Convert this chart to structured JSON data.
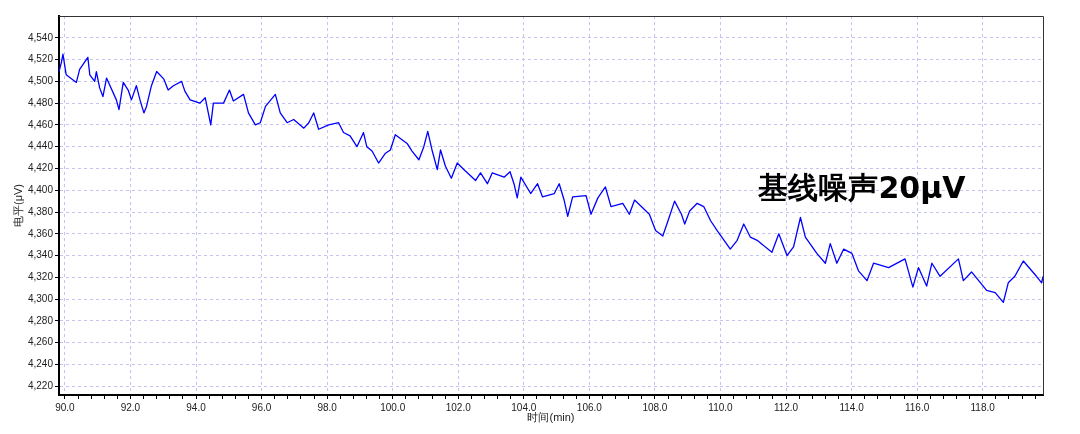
{
  "chart_data": {
    "type": "line",
    "xlabel": "时间(min)",
    "ylabel": "电平(μV)",
    "annotations": [
      "基线噪声20μV"
    ],
    "color": "#0000ff",
    "marker": "none",
    "grid": true,
    "x": [
      89.82,
      89.89,
      89.94,
      90.04,
      90.35,
      90.45,
      90.7,
      90.76,
      90.91,
      90.96,
      91.06,
      91.16,
      91.27,
      91.57,
      91.65,
      91.78,
      91.93,
      92.03,
      92.18,
      92.29,
      92.41,
      92.49,
      92.64,
      92.8,
      93.02,
      93.15,
      93.31,
      93.56,
      93.66,
      93.82,
      94.12,
      94.28,
      94.45,
      94.53,
      94.84,
      95.02,
      95.14,
      95.45,
      95.6,
      95.81,
      95.96,
      96.12,
      96.42,
      96.57,
      96.78,
      96.98,
      97.29,
      97.44,
      97.59,
      97.74,
      98.05,
      98.35,
      98.5,
      98.7,
      98.91,
      99.11,
      99.21,
      99.37,
      99.57,
      99.78,
      99.93,
      100.08,
      100.44,
      100.59,
      100.8,
      100.95,
      101.07,
      101.2,
      101.36,
      101.46,
      101.61,
      101.79,
      101.97,
      102.17,
      102.53,
      102.68,
      102.89,
      103.04,
      103.4,
      103.58,
      103.7,
      103.8,
      103.91,
      104.21,
      104.42,
      104.57,
      104.93,
      105.08,
      105.23,
      105.34,
      105.49,
      105.9,
      106.05,
      106.26,
      106.49,
      106.66,
      107.02,
      107.22,
      107.38,
      107.83,
      108.02,
      108.24,
      108.4,
      108.6,
      108.81,
      108.91,
      109.06,
      109.29,
      109.49,
      109.7,
      109.9,
      110.3,
      110.51,
      110.71,
      110.91,
      111.12,
      111.57,
      111.78,
      112.03,
      112.23,
      112.44,
      112.59,
      112.94,
      113.2,
      113.35,
      113.55,
      113.76,
      114.01,
      114.21,
      114.47,
      114.67,
      115.13,
      115.63,
      115.87,
      116.04,
      116.29,
      116.45,
      116.7,
      117.26,
      117.41,
      117.66,
      118.12,
      118.38,
      118.63,
      118.78,
      118.98,
      119.24,
      119.64,
      119.8,
      119.84
    ],
    "values": [
      4509,
      4517,
      4525,
      4506,
      4499,
      4511,
      4522,
      4506,
      4500,
      4509,
      4494,
      4486,
      4503,
      4483,
      4474,
      4499,
      4492,
      4483,
      4496,
      4483,
      4471,
      4477,
      4496,
      4509,
      4502,
      4492,
      4496,
      4500,
      4491,
      4483,
      4480,
      4485,
      4460,
      4480,
      4480,
      4492,
      4482,
      4488,
      4471,
      4460,
      4462,
      4477,
      4488,
      4471,
      4462,
      4465,
      4457,
      4462,
      4471,
      4456,
      4460,
      4462,
      4453,
      4450,
      4440,
      4453,
      4440,
      4436,
      4425,
      4434,
      4437,
      4451,
      4443,
      4436,
      4428,
      4440,
      4454,
      4437,
      4419,
      4437,
      4422,
      4411,
      4425,
      4419,
      4409,
      4416,
      4406,
      4416,
      4412,
      4417,
      4406,
      4393,
      4412,
      4397,
      4406,
      4394,
      4397,
      4406,
      4391,
      4376,
      4394,
      4395,
      4378,
      4393,
      4403,
      4385,
      4388,
      4378,
      4391,
      4378,
      4363,
      4358,
      4372,
      4390,
      4378,
      4369,
      4381,
      4388,
      4385,
      4372,
      4363,
      4346,
      4354,
      4369,
      4357,
      4354,
      4343,
      4360,
      4340,
      4348,
      4375,
      4357,
      4342,
      4333,
      4351,
      4333,
      4346,
      4342,
      4326,
      4317,
      4333,
      4329,
      4337,
      4311,
      4329,
      4312,
      4333,
      4321,
      4337,
      4317,
      4325,
      4308,
      4306,
      4297,
      4315,
      4321,
      4335,
      4321,
      4315,
      4321
    ],
    "xlim": [
      89.82,
      119.84
    ],
    "ylim": [
      4212,
      4560
    ],
    "xticks": [
      {
        "value": 90,
        "label": "90.0"
      },
      {
        "value": 90.4,
        "label": null
      },
      {
        "value": 90.8,
        "label": null
      },
      {
        "value": 91.2,
        "label": null
      },
      {
        "value": 91.6,
        "label": null
      },
      {
        "value": 92,
        "label": "92.0"
      },
      {
        "value": 92.4,
        "label": null
      },
      {
        "value": 92.8,
        "label": null
      },
      {
        "value": 93.2,
        "label": null
      },
      {
        "value": 93.6,
        "label": null
      },
      {
        "value": 94,
        "label": "94.0"
      },
      {
        "value": 94.4,
        "label": null
      },
      {
        "value": 94.8,
        "label": null
      },
      {
        "value": 95.2,
        "label": null
      },
      {
        "value": 95.6,
        "label": null
      },
      {
        "value": 96,
        "label": "96.0"
      },
      {
        "value": 96.4,
        "label": null
      },
      {
        "value": 96.8,
        "label": null
      },
      {
        "value": 97.2,
        "label": null
      },
      {
        "value": 97.6,
        "label": null
      },
      {
        "value": 98,
        "label": "98.0"
      },
      {
        "value": 98.4,
        "label": null
      },
      {
        "value": 98.8,
        "label": null
      },
      {
        "value": 99.2,
        "label": null
      },
      {
        "value": 99.6,
        "label": null
      },
      {
        "value": 100,
        "label": "100.0"
      },
      {
        "value": 100.4,
        "label": null
      },
      {
        "value": 100.8,
        "label": null
      },
      {
        "value": 101.2,
        "label": null
      },
      {
        "value": 101.6,
        "label": null
      },
      {
        "value": 102,
        "label": "102.0"
      },
      {
        "value": 102.4,
        "label": null
      },
      {
        "value": 102.8,
        "label": null
      },
      {
        "value": 103.2,
        "label": null
      },
      {
        "value": 103.6,
        "label": null
      },
      {
        "value": 104,
        "label": "104.0"
      },
      {
        "value": 104.4,
        "label": null
      },
      {
        "value": 104.8,
        "label": null
      },
      {
        "value": 105.2,
        "label": null
      },
      {
        "value": 105.6,
        "label": null
      },
      {
        "value": 106,
        "label": "106.0"
      },
      {
        "value": 106.4,
        "label": null
      },
      {
        "value": 106.8,
        "label": null
      },
      {
        "value": 107.2,
        "label": null
      },
      {
        "value": 107.6,
        "label": null
      },
      {
        "value": 108,
        "label": "108.0"
      },
      {
        "value": 108.4,
        "label": null
      },
      {
        "value": 108.8,
        "label": null
      },
      {
        "value": 109.2,
        "label": null
      },
      {
        "value": 109.6,
        "label": null
      },
      {
        "value": 110,
        "label": "110.0"
      },
      {
        "value": 110.4,
        "label": null
      },
      {
        "value": 110.8,
        "label": null
      },
      {
        "value": 111.2,
        "label": null
      },
      {
        "value": 111.6,
        "label": null
      },
      {
        "value": 112,
        "label": "112.0"
      },
      {
        "value": 112.4,
        "label": null
      },
      {
        "value": 112.8,
        "label": null
      },
      {
        "value": 113.2,
        "label": null
      },
      {
        "value": 113.6,
        "label": null
      },
      {
        "value": 114,
        "label": "114.0"
      },
      {
        "value": 114.4,
        "label": null
      },
      {
        "value": 114.8,
        "label": null
      },
      {
        "value": 115.2,
        "label": null
      },
      {
        "value": 115.6,
        "label": null
      },
      {
        "value": 116,
        "label": "116.0"
      },
      {
        "value": 116.4,
        "label": null
      },
      {
        "value": 116.8,
        "label": null
      },
      {
        "value": 117.2,
        "label": null
      },
      {
        "value": 117.6,
        "label": null
      },
      {
        "value": 118,
        "label": "118.0"
      },
      {
        "value": 118.4,
        "label": null
      },
      {
        "value": 118.8,
        "label": null
      },
      {
        "value": 119.2,
        "label": null
      },
      {
        "value": 119.6,
        "label": null
      }
    ],
    "yticks": [
      {
        "value": 4220,
        "label": "4,220"
      },
      {
        "value": 4240,
        "label": "4,240"
      },
      {
        "value": 4260,
        "label": "4,260"
      },
      {
        "value": 4280,
        "label": "4,280"
      },
      {
        "value": 4300,
        "label": "4,300"
      },
      {
        "value": 4320,
        "label": "4,320"
      },
      {
        "value": 4340,
        "label": "4,340"
      },
      {
        "value": 4360,
        "label": "4,360"
      },
      {
        "value": 4380,
        "label": "4,380"
      },
      {
        "value": 4400,
        "label": "4,400"
      },
      {
        "value": 4420,
        "label": "4,420"
      },
      {
        "value": 4440,
        "label": "4,440"
      },
      {
        "value": 4460,
        "label": "4,460"
      },
      {
        "value": 4480,
        "label": "4,480"
      },
      {
        "value": 4500,
        "label": "4,500"
      },
      {
        "value": 4520,
        "label": "4,520"
      },
      {
        "value": 4540,
        "label": "4,540"
      }
    ]
  }
}
